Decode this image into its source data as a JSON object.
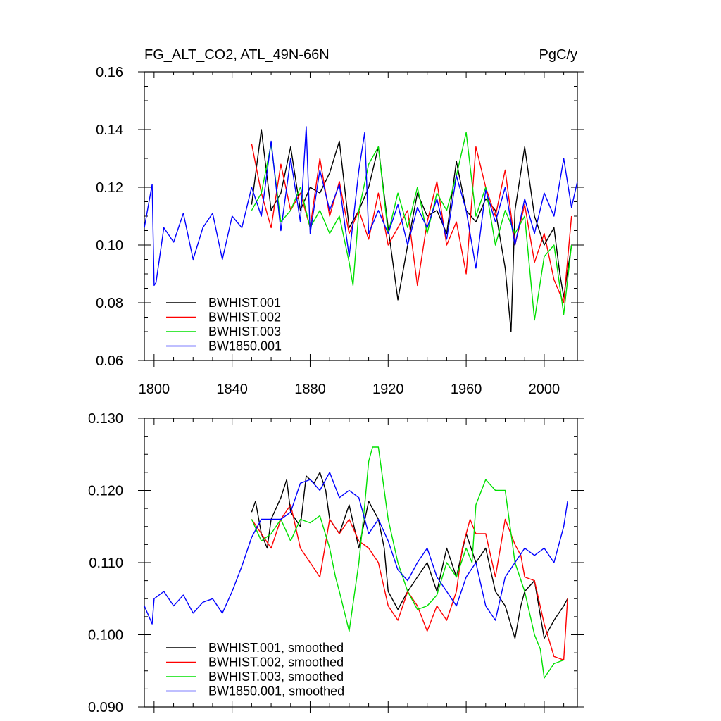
{
  "chart_data": [
    {
      "type": "line",
      "title": "FG_ALT_CO2, ATL_49N-66N",
      "units": "PgC/y",
      "xlim": [
        1795,
        2017
      ],
      "ylim": [
        0.06,
        0.16
      ],
      "xticks": [
        1800,
        1840,
        1880,
        1920,
        1960,
        2000
      ],
      "xtick_labels": [
        "1800",
        "1840",
        "1880",
        "1920",
        "1960",
        "2000"
      ],
      "yticks": [
        0.06,
        0.08,
        0.1,
        0.12,
        0.14,
        0.16
      ],
      "ytick_labels": [
        "0.06",
        "0.08",
        "0.10",
        "0.12",
        "0.14",
        "0.16"
      ],
      "legend_position": "bottom-left",
      "series": [
        {
          "name": "BWHIST.001",
          "color": "#000000",
          "x": [
            1850,
            1855,
            1860,
            1865,
            1870,
            1875,
            1880,
            1885,
            1890,
            1895,
            1900,
            1905,
            1910,
            1915,
            1920,
            1925,
            1930,
            1935,
            1940,
            1945,
            1950,
            1955,
            1960,
            1965,
            1970,
            1975,
            1980,
            1983,
            1985,
            1990,
            1995,
            2000,
            2005,
            2008,
            2010,
            2014
          ],
          "y": [
            0.114,
            0.14,
            0.112,
            0.118,
            0.134,
            0.112,
            0.12,
            0.118,
            0.125,
            0.136,
            0.106,
            0.112,
            0.12,
            0.134,
            0.106,
            0.081,
            0.1,
            0.118,
            0.11,
            0.112,
            0.104,
            0.129,
            0.112,
            0.108,
            0.116,
            0.112,
            0.092,
            0.07,
            0.112,
            0.134,
            0.11,
            0.1,
            0.106,
            0.09,
            0.082,
            0.1
          ]
        },
        {
          "name": "BWHIST.002",
          "color": "#ff0000",
          "x": [
            1850,
            1855,
            1860,
            1865,
            1870,
            1875,
            1880,
            1885,
            1890,
            1895,
            1900,
            1905,
            1910,
            1915,
            1920,
            1925,
            1930,
            1935,
            1940,
            1945,
            1950,
            1955,
            1960,
            1965,
            1970,
            1975,
            1980,
            1985,
            1990,
            1995,
            2000,
            2005,
            2010,
            2014
          ],
          "y": [
            0.135,
            0.118,
            0.106,
            0.128,
            0.112,
            0.118,
            0.106,
            0.13,
            0.11,
            0.122,
            0.104,
            0.112,
            0.102,
            0.118,
            0.1,
            0.106,
            0.112,
            0.086,
            0.108,
            0.122,
            0.1,
            0.108,
            0.09,
            0.134,
            0.12,
            0.11,
            0.126,
            0.1,
            0.114,
            0.094,
            0.104,
            0.088,
            0.08,
            0.11
          ]
        },
        {
          "name": "BWHIST.003",
          "color": "#00e000",
          "x": [
            1850,
            1855,
            1860,
            1865,
            1870,
            1875,
            1880,
            1885,
            1890,
            1895,
            1900,
            1902,
            1905,
            1910,
            1915,
            1920,
            1925,
            1930,
            1935,
            1940,
            1945,
            1950,
            1955,
            1960,
            1965,
            1970,
            1975,
            1980,
            1985,
            1990,
            1995,
            2000,
            2005,
            2010,
            2014
          ],
          "y": [
            0.112,
            0.118,
            0.135,
            0.108,
            0.112,
            0.12,
            0.106,
            0.112,
            0.104,
            0.11,
            0.094,
            0.086,
            0.112,
            0.128,
            0.134,
            0.104,
            0.118,
            0.106,
            0.12,
            0.104,
            0.118,
            0.112,
            0.124,
            0.139,
            0.11,
            0.12,
            0.1,
            0.112,
            0.104,
            0.11,
            0.074,
            0.096,
            0.1,
            0.076,
            0.1
          ]
        },
        {
          "name": "BW1850.001",
          "color": "#0000ff",
          "x": [
            1795,
            1799,
            1800,
            1801,
            1805,
            1810,
            1815,
            1820,
            1825,
            1830,
            1835,
            1840,
            1845,
            1850,
            1855,
            1860,
            1865,
            1870,
            1875,
            1878,
            1880,
            1885,
            1890,
            1895,
            1900,
            1905,
            1908,
            1910,
            1915,
            1920,
            1925,
            1930,
            1935,
            1940,
            1945,
            1950,
            1955,
            1960,
            1965,
            1970,
            1975,
            1980,
            1985,
            1990,
            1995,
            2000,
            2005,
            2010,
            2014,
            2017
          ],
          "y": [
            0.106,
            0.121,
            0.086,
            0.087,
            0.106,
            0.101,
            0.111,
            0.095,
            0.106,
            0.111,
            0.095,
            0.11,
            0.106,
            0.12,
            0.11,
            0.136,
            0.105,
            0.13,
            0.108,
            0.141,
            0.104,
            0.126,
            0.112,
            0.121,
            0.096,
            0.126,
            0.139,
            0.104,
            0.112,
            0.104,
            0.114,
            0.1,
            0.113,
            0.106,
            0.116,
            0.102,
            0.124,
            0.112,
            0.092,
            0.119,
            0.108,
            0.12,
            0.1,
            0.116,
            0.104,
            0.118,
            0.11,
            0.13,
            0.113,
            0.122
          ]
        }
      ]
    },
    {
      "type": "line",
      "title": "",
      "xlim": [
        1795,
        2017
      ],
      "ylim": [
        0.09,
        0.13
      ],
      "xticks": [
        1800,
        1840,
        1880,
        1920,
        1960,
        2000
      ],
      "yticks": [
        0.09,
        0.1,
        0.11,
        0.12,
        0.13
      ],
      "ytick_labels": [
        "0.090",
        "0.100",
        "0.110",
        "0.120",
        "0.130"
      ],
      "legend_position": "bottom-left",
      "series": [
        {
          "name": "BWHIST.001, smoothed",
          "color": "#000000",
          "x": [
            1850,
            1852,
            1855,
            1858,
            1860,
            1865,
            1868,
            1870,
            1875,
            1878,
            1882,
            1885,
            1888,
            1890,
            1895,
            1900,
            1905,
            1910,
            1915,
            1918,
            1920,
            1925,
            1930,
            1935,
            1940,
            1945,
            1950,
            1955,
            1960,
            1965,
            1970,
            1975,
            1980,
            1985,
            1988,
            1990,
            1995,
            2000,
            2005,
            2010,
            2012
          ],
          "y": [
            0.117,
            0.1185,
            0.114,
            0.112,
            0.116,
            0.119,
            0.1215,
            0.117,
            0.115,
            0.122,
            0.121,
            0.1225,
            0.12,
            0.116,
            0.114,
            0.118,
            0.112,
            0.1185,
            0.116,
            0.112,
            0.106,
            0.1035,
            0.106,
            0.108,
            0.11,
            0.106,
            0.112,
            0.108,
            0.114,
            0.11,
            0.112,
            0.106,
            0.104,
            0.0995,
            0.104,
            0.106,
            0.1075,
            0.0995,
            0.102,
            0.104,
            0.105
          ]
        },
        {
          "name": "BWHIST.002, smoothed",
          "color": "#ff0000",
          "x": [
            1850,
            1855,
            1860,
            1865,
            1870,
            1875,
            1880,
            1885,
            1890,
            1895,
            1900,
            1905,
            1910,
            1915,
            1920,
            1925,
            1930,
            1935,
            1940,
            1945,
            1950,
            1955,
            1958,
            1962,
            1965,
            1970,
            1975,
            1980,
            1985,
            1988,
            1990,
            1995,
            2000,
            2005,
            2010,
            2012
          ],
          "y": [
            0.116,
            0.114,
            0.112,
            0.116,
            0.118,
            0.112,
            0.11,
            0.108,
            0.116,
            0.114,
            0.116,
            0.113,
            0.112,
            0.11,
            0.104,
            0.102,
            0.106,
            0.104,
            0.1005,
            0.104,
            0.102,
            0.106,
            0.112,
            0.116,
            0.114,
            0.114,
            0.108,
            0.116,
            0.1125,
            0.111,
            0.108,
            0.1075,
            0.1015,
            0.097,
            0.0965,
            0.105
          ]
        },
        {
          "name": "BWHIST.003, smoothed",
          "color": "#00e000",
          "x": [
            1850,
            1855,
            1860,
            1865,
            1870,
            1875,
            1880,
            1885,
            1890,
            1893,
            1895,
            1900,
            1905,
            1908,
            1910,
            1912,
            1915,
            1920,
            1925,
            1930,
            1935,
            1940,
            1945,
            1950,
            1955,
            1960,
            1963,
            1965,
            1970,
            1975,
            1980,
            1985,
            1990,
            1995,
            1998,
            2000,
            2005,
            2010
          ],
          "y": [
            0.116,
            0.113,
            0.114,
            0.116,
            0.113,
            0.116,
            0.1155,
            0.1165,
            0.112,
            0.108,
            0.106,
            0.1005,
            0.11,
            0.118,
            0.124,
            0.126,
            0.126,
            0.116,
            0.11,
            0.106,
            0.1035,
            0.104,
            0.1055,
            0.11,
            0.108,
            0.112,
            0.11,
            0.118,
            0.1215,
            0.12,
            0.12,
            0.11,
            0.106,
            0.1,
            0.098,
            0.094,
            0.096,
            0.0965
          ]
        },
        {
          "name": "BW1850.001, smoothed",
          "color": "#0000ff",
          "x": [
            1795,
            1799,
            1800,
            1805,
            1810,
            1815,
            1820,
            1825,
            1830,
            1835,
            1840,
            1845,
            1850,
            1855,
            1860,
            1865,
            1870,
            1875,
            1880,
            1885,
            1890,
            1895,
            1900,
            1905,
            1910,
            1915,
            1920,
            1925,
            1930,
            1935,
            1940,
            1945,
            1950,
            1955,
            1960,
            1965,
            1970,
            1975,
            1980,
            1985,
            1990,
            1995,
            2000,
            2005,
            2010,
            2012
          ],
          "y": [
            0.104,
            0.1015,
            0.105,
            0.106,
            0.104,
            0.1055,
            0.103,
            0.1045,
            0.105,
            0.103,
            0.106,
            0.1095,
            0.1135,
            0.116,
            0.116,
            0.116,
            0.117,
            0.121,
            0.1215,
            0.12,
            0.1225,
            0.119,
            0.12,
            0.119,
            0.114,
            0.116,
            0.113,
            0.109,
            0.1075,
            0.11,
            0.112,
            0.108,
            0.106,
            0.104,
            0.108,
            0.11,
            0.104,
            0.102,
            0.108,
            0.11,
            0.112,
            0.111,
            0.112,
            0.11,
            0.115,
            0.1185
          ]
        }
      ]
    }
  ]
}
